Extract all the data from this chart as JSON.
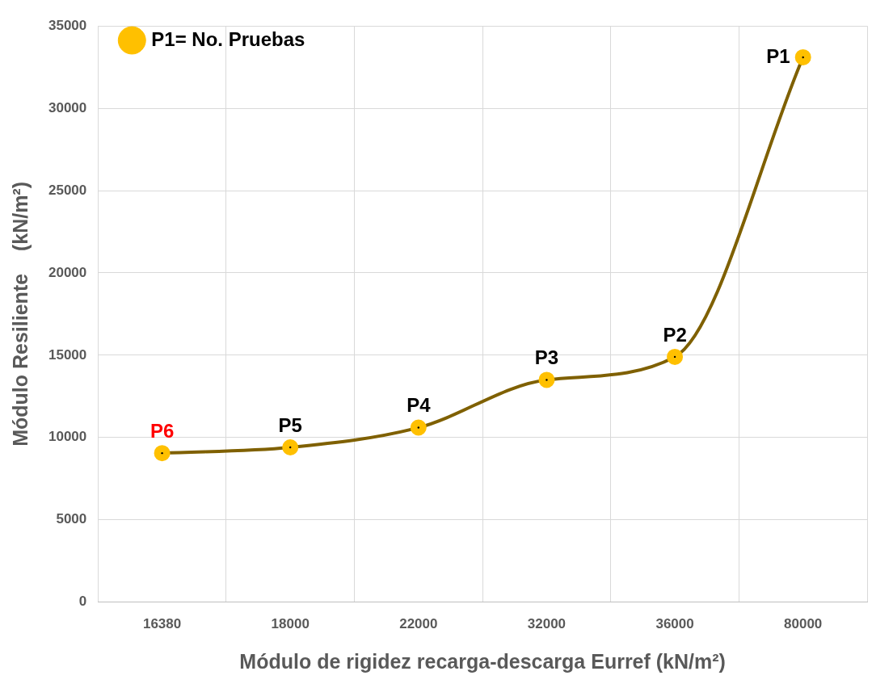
{
  "chart_data": {
    "type": "line",
    "xlabel": "Módulo de rigidez recarga-descarga Eurref (kN/m²)",
    "ylabel": "Módulo Resiliente    (kN/m²)",
    "categories": [
      "16380",
      "18000",
      "22000",
      "32000",
      "36000",
      "80000"
    ],
    "series": [
      {
        "name": "P1= No. Pruebas",
        "color": "#7f6000",
        "values": [
          9050,
          9400,
          10600,
          13500,
          14900,
          33100
        ]
      }
    ],
    "ylim": [
      0,
      35000
    ],
    "yticks": [
      0,
      5000,
      10000,
      15000,
      20000,
      25000,
      30000,
      35000
    ],
    "grid": true,
    "legend": "top left",
    "marker": "circle",
    "line_style": "solid",
    "annotations": [
      {
        "text": "P6",
        "x": "16380",
        "y": 9050
      },
      {
        "text": "P5",
        "x": "18000",
        "y": 9400
      },
      {
        "text": "P4",
        "x": "22000",
        "y": 10600
      },
      {
        "text": "P3",
        "x": "32000",
        "y": 13500
      },
      {
        "text": "P2",
        "x": "36000",
        "y": 14900
      },
      {
        "text": "P1",
        "x": "80000",
        "y": 33100
      }
    ]
  }
}
